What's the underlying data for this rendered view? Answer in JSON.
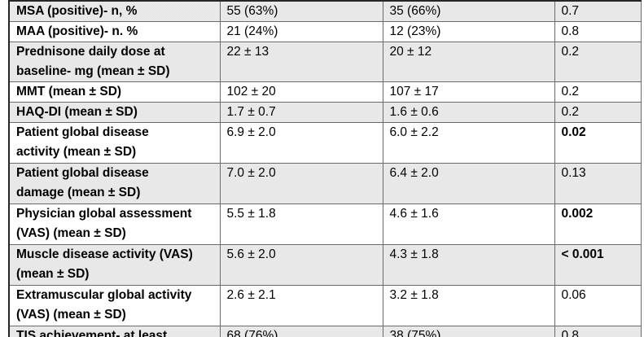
{
  "table": {
    "description": "Clinical characteristics comparison table (cropped)",
    "columns": [
      "parameter",
      "group1_value",
      "group2_value",
      "p_value"
    ],
    "rows": [
      {
        "label": "MSA (positive)- n, %",
        "group1": "55 (63%)",
        "group2": "35 (66%)",
        "p_value": "0.7",
        "p_significant": false
      },
      {
        "label": "MAA (positive)- n. %",
        "group1": "21 (24%)",
        "group2": "12 (23%)",
        "p_value": "0.8",
        "p_significant": false
      },
      {
        "label": "Prednisone daily dose at\nbaseline- mg (mean ± SD)",
        "group1": "22 ± 13",
        "group2": "20 ± 12",
        "p_value": "0.2",
        "p_significant": false
      },
      {
        "label": "MMT (mean ± SD)",
        "group1": "102 ± 20",
        "group2": "107 ± 17",
        "p_value": "0.2",
        "p_significant": false
      },
      {
        "label": "HAQ-DI (mean ± SD)",
        "group1": "1.7 ± 0.7",
        "group2": "1.6 ± 0.6",
        "p_value": "0.2",
        "p_significant": false
      },
      {
        "label": "Patient global disease\nactivity (mean ± SD)",
        "group1": "6.9 ± 2.0",
        "group2": "6.0 ± 2.2",
        "p_value": "0.02",
        "p_significant": true
      },
      {
        "label": "Patient global disease\ndamage (mean ± SD)",
        "group1": "7.0 ± 2.0",
        "group2": "6.4 ± 2.0",
        "p_value": "0.13",
        "p_significant": false
      },
      {
        "label": "Physician global assessment\n(VAS) (mean ± SD)",
        "group1": "5.5 ± 1.8",
        "group2": "4.6 ± 1.6",
        "p_value": "0.002",
        "p_significant": true
      },
      {
        "label": "Muscle disease activity (VAS)\n(mean ± SD)",
        "group1": "5.6 ± 2.0",
        "group2": "4.3 ± 1.8",
        "p_value": "< 0.001",
        "p_significant": true
      },
      {
        "label": "Extramuscular global activity\n(VAS) (mean ± SD)",
        "group1": "2.6 ± 2.1",
        "group2": "3.2 ± 1.8",
        "p_value": "0.06",
        "p_significant": false
      },
      {
        "label": "TIS achievement- at least",
        "group1": "68 (76%)",
        "group2": "38 (75%)",
        "p_value": "0.8",
        "p_significant": false
      }
    ],
    "colors": {
      "shaded_row": "#e9e9e9",
      "border": "#6b6b6b",
      "text": "#000000"
    }
  }
}
